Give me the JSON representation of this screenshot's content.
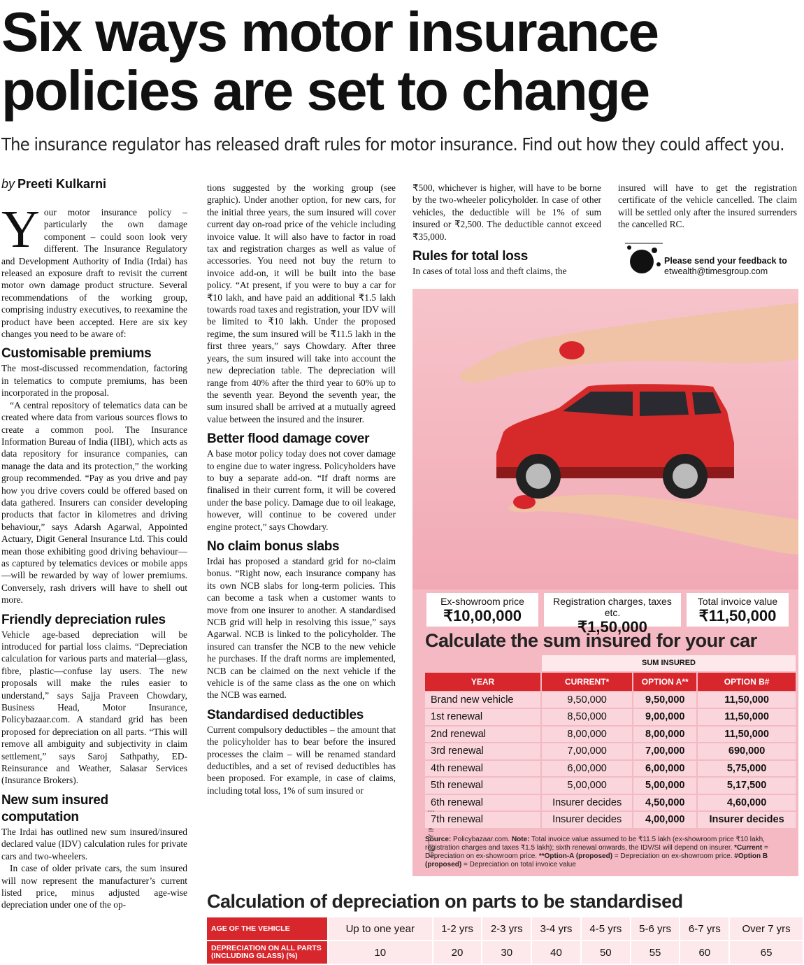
{
  "header": {
    "title_lines": [
      "Six ways motor insurance",
      "policies are set to change"
    ],
    "subtitle": "The insurance regulator has released draft rules for motor insurance. Find out how they could affect you.",
    "byline_prefix": "by",
    "author": "Preeti Kulkarni"
  },
  "article": {
    "columns": [
      [
        {
          "p": "Your motor insurance policy – particularly the own damage component – could soon look very different. The Insurance Regulatory and Development Authority of India (Irdai) has released an exposure draft to revisit the current motor own damage product structure. Several recommendations of the working group, comprising industry executives, to reexamine the product have been accepted. Here are six key changes you need to be aware of:"
        },
        {
          "h": "Customisable premiums"
        },
        {
          "p": "The most-discussed recommendation, factoring in telematics to compute premiums, has been incorporated in the proposal."
        },
        {
          "p": "“A central repository of telematics data can be created where data from various sources flows to create a common pool. The Insurance Information Bureau of India (IIBI), which acts as data repository for insurance companies, can manage the data and its protection,” the working group recommended. “Pay as you drive and pay how you drive covers could be offered based on data gathered. Insurers can consider developing products that factor in kilometres and driving behaviour,” says Adarsh Agarwal, Appointed Actuary, Digit General Insurance Ltd. This could mean those exhibiting good driving behaviour—as captured by telematics devices or mobile apps—will be rewarded by way of lower premiums. Conversely, rash drivers will have to shell out more."
        },
        {
          "h": "Friendly depreciation rules"
        },
        {
          "p": "Vehicle age-based depreciation will be introduced for partial loss claims. “Depreciation calculation for various parts and material—glass, fibre, plastic—confuse lay users. The new proposals will make the rules easier to understand,” says Sajja Praveen Chowdary, Business Head, Motor Insurance, Policybazaar.com. A standard grid has been proposed for depreciation on all parts. “This will remove all ambiguity and subjectivity in claim settlement,” says Saroj Sathpathy, ED-Reinsurance and Weather, Salasar Services (Insurance Brokers)."
        },
        {
          "h": "New sum insured computation"
        },
        {
          "p": "The Irdai has outlined new sum insured/insured declared value (IDV) calculation rules for private cars and two-wheelers."
        },
        {
          "p": "In case of older private cars, the sum insured will now represent the manufacturer’s current listed price, minus adjusted age-wise depreciation under one of the op-"
        }
      ],
      [
        {
          "p": "tions suggested by the working group (see graphic). Under another option, for new cars, for the initial three years, the sum insured will cover current day on-road price of the vehicle including invoice value. It will also have to factor in road tax and registration charges as well as value of accessories. You need not buy the return to invoice add-on, it will be built into the base policy. “At present, if you were to buy a car for ₹10 lakh, and have paid an additional ₹1.5 lakh towards road taxes and registration, your IDV will be limited to ₹10 lakh. Under the proposed regime, the sum insured will be ₹11.5 lakh in the first three years,” says Chowdary. After three years, the sum insured will take into account the new depreciation table. The depreciation will range from 40% after the third year to 60% up to the seventh year. Beyond the seventh year, the sum insured shall be arrived at a mutually agreed value between the insured and the insurer."
        },
        {
          "h": "Better flood damage cover"
        },
        {
          "p": "A base motor policy today does not cover damage to engine due to water ingress. Policyholders have to buy a separate add-on. “If draft norms are finalised in their current form, it will be covered under the base policy. Damage due to oil leakage, however, will continue to be covered under engine protect,” says Chowdary."
        },
        {
          "h": "No claim bonus slabs"
        },
        {
          "p": "Irdai has proposed a standard grid for no-claim bonus. “Right now, each insurance company has its own NCB slabs for long-term policies. This can become a task when a customer wants to move from one insurer to another. A standardised NCB grid will help in resolving this issue,” says Agarwal. NCB is linked to the policyholder. The insured can transfer the NCB to the new vehicle he purchases. If the draft norms are implemented, NCB can be claimed on the next vehicle if the vehicle is of the same class as the one on which the NCB was earned."
        },
        {
          "h": "Standardised deductibles"
        },
        {
          "p": "Current compulsory deductibles – the amount that the policyholder has to bear before the insured processes the claim – will be renamed standard deductibles, and a set of revised deductibles has been proposed. For example, in case of claims, including total loss, 1% of sum insured or"
        }
      ],
      [
        {
          "p": "₹500, whichever is higher, will have to be borne by the two-wheeler policyholder. In case of other vehicles, the deductible will be 1% of sum insured or ₹2,500. The deductible cannot exceed ₹35,000."
        },
        {
          "h": "Rules for total loss"
        },
        {
          "p": "In cases of total loss and theft claims, the"
        }
      ],
      [
        {
          "p": "insured will have to get the registration certificate of the vehicle cancelled. The claim will be settled only after the insured surrenders the cancelled RC."
        }
      ]
    ]
  },
  "feedback": {
    "line1": "Please send your feedback to",
    "email": "etwealth@timesgroup.com"
  },
  "graphic": {
    "credit": "GETTY IMAGES",
    "boxes": [
      {
        "label": "Ex-showroom price",
        "value": "₹10,00,000"
      },
      {
        "label": "Registration charges, taxes etc.",
        "value": "₹1,50,000"
      },
      {
        "label": "Total invoice value",
        "value": "₹11,50,000"
      }
    ],
    "table": {
      "title": "Calculate the sum insured for your car",
      "group_header": "SUM INSURED",
      "headers": [
        "YEAR",
        "CURRENT*",
        "OPTION A**",
        "OPTION B#"
      ],
      "rows": [
        [
          "Brand new vehicle",
          "9,50,000",
          "9,50,000",
          "11,50,000"
        ],
        [
          "1st renewal",
          "8,50,000",
          "9,00,000",
          "11,50,000"
        ],
        [
          "2nd renewal",
          "8,00,000",
          "8,00,000",
          "11,50,000"
        ],
        [
          "3rd renewal",
          "7,00,000",
          "7,00,000",
          "690,000"
        ],
        [
          "4th renewal",
          "6,00,000",
          "6,00,000",
          "5,75,000"
        ],
        [
          "5th renewal",
          "5,00,000",
          "5,00,000",
          "5,17,500"
        ],
        [
          "6th renewal",
          "Insurer decides",
          "4,50,000",
          "4,60,000"
        ],
        [
          "7th renewal",
          "Insurer decides",
          "4,00,000",
          "Insurer decides"
        ]
      ]
    },
    "note": [
      {
        "text": "Source:",
        "bold": true
      },
      {
        "text": " Policybazaar.com. ",
        "bold": false
      },
      {
        "text": "Note:",
        "bold": true
      },
      {
        "text": " Total invoice value assumed to be ₹11.5 lakh (ex-showroom price ₹10 lakh, registration charges and taxes ₹1.5 lakh); sixth renewal onwards, the IDV/SI will depend on insurer. ",
        "bold": false
      },
      {
        "text": "*Current",
        "bold": true
      },
      {
        "text": " = Depreciation on ex-showroom price. ",
        "bold": false
      },
      {
        "text": "**Option-A (proposed)",
        "bold": true
      },
      {
        "text": " = Depreciation on ex-showroom price. ",
        "bold": false
      },
      {
        "text": "#Option B (proposed)",
        "bold": true
      },
      {
        "text": " = Depreciation on total invoice value",
        "bold": false
      }
    ]
  },
  "depreciation": {
    "title": "Calculation of depreciation on parts to be standardised",
    "row_labels": [
      "AGE OF THE VEHICLE",
      "DEPRECIATION ON ALL PARTS (INCLUDING GLASS) (%)"
    ],
    "ages": [
      "Up to one year",
      "1-2 yrs",
      "2-3 yrs",
      "3-4 yrs",
      "4-5 yrs",
      "5-6 yrs",
      "6-7 yrs",
      "Over 7 yrs"
    ],
    "rates": [
      10,
      20,
      30,
      40,
      50,
      55,
      60,
      65
    ]
  }
}
